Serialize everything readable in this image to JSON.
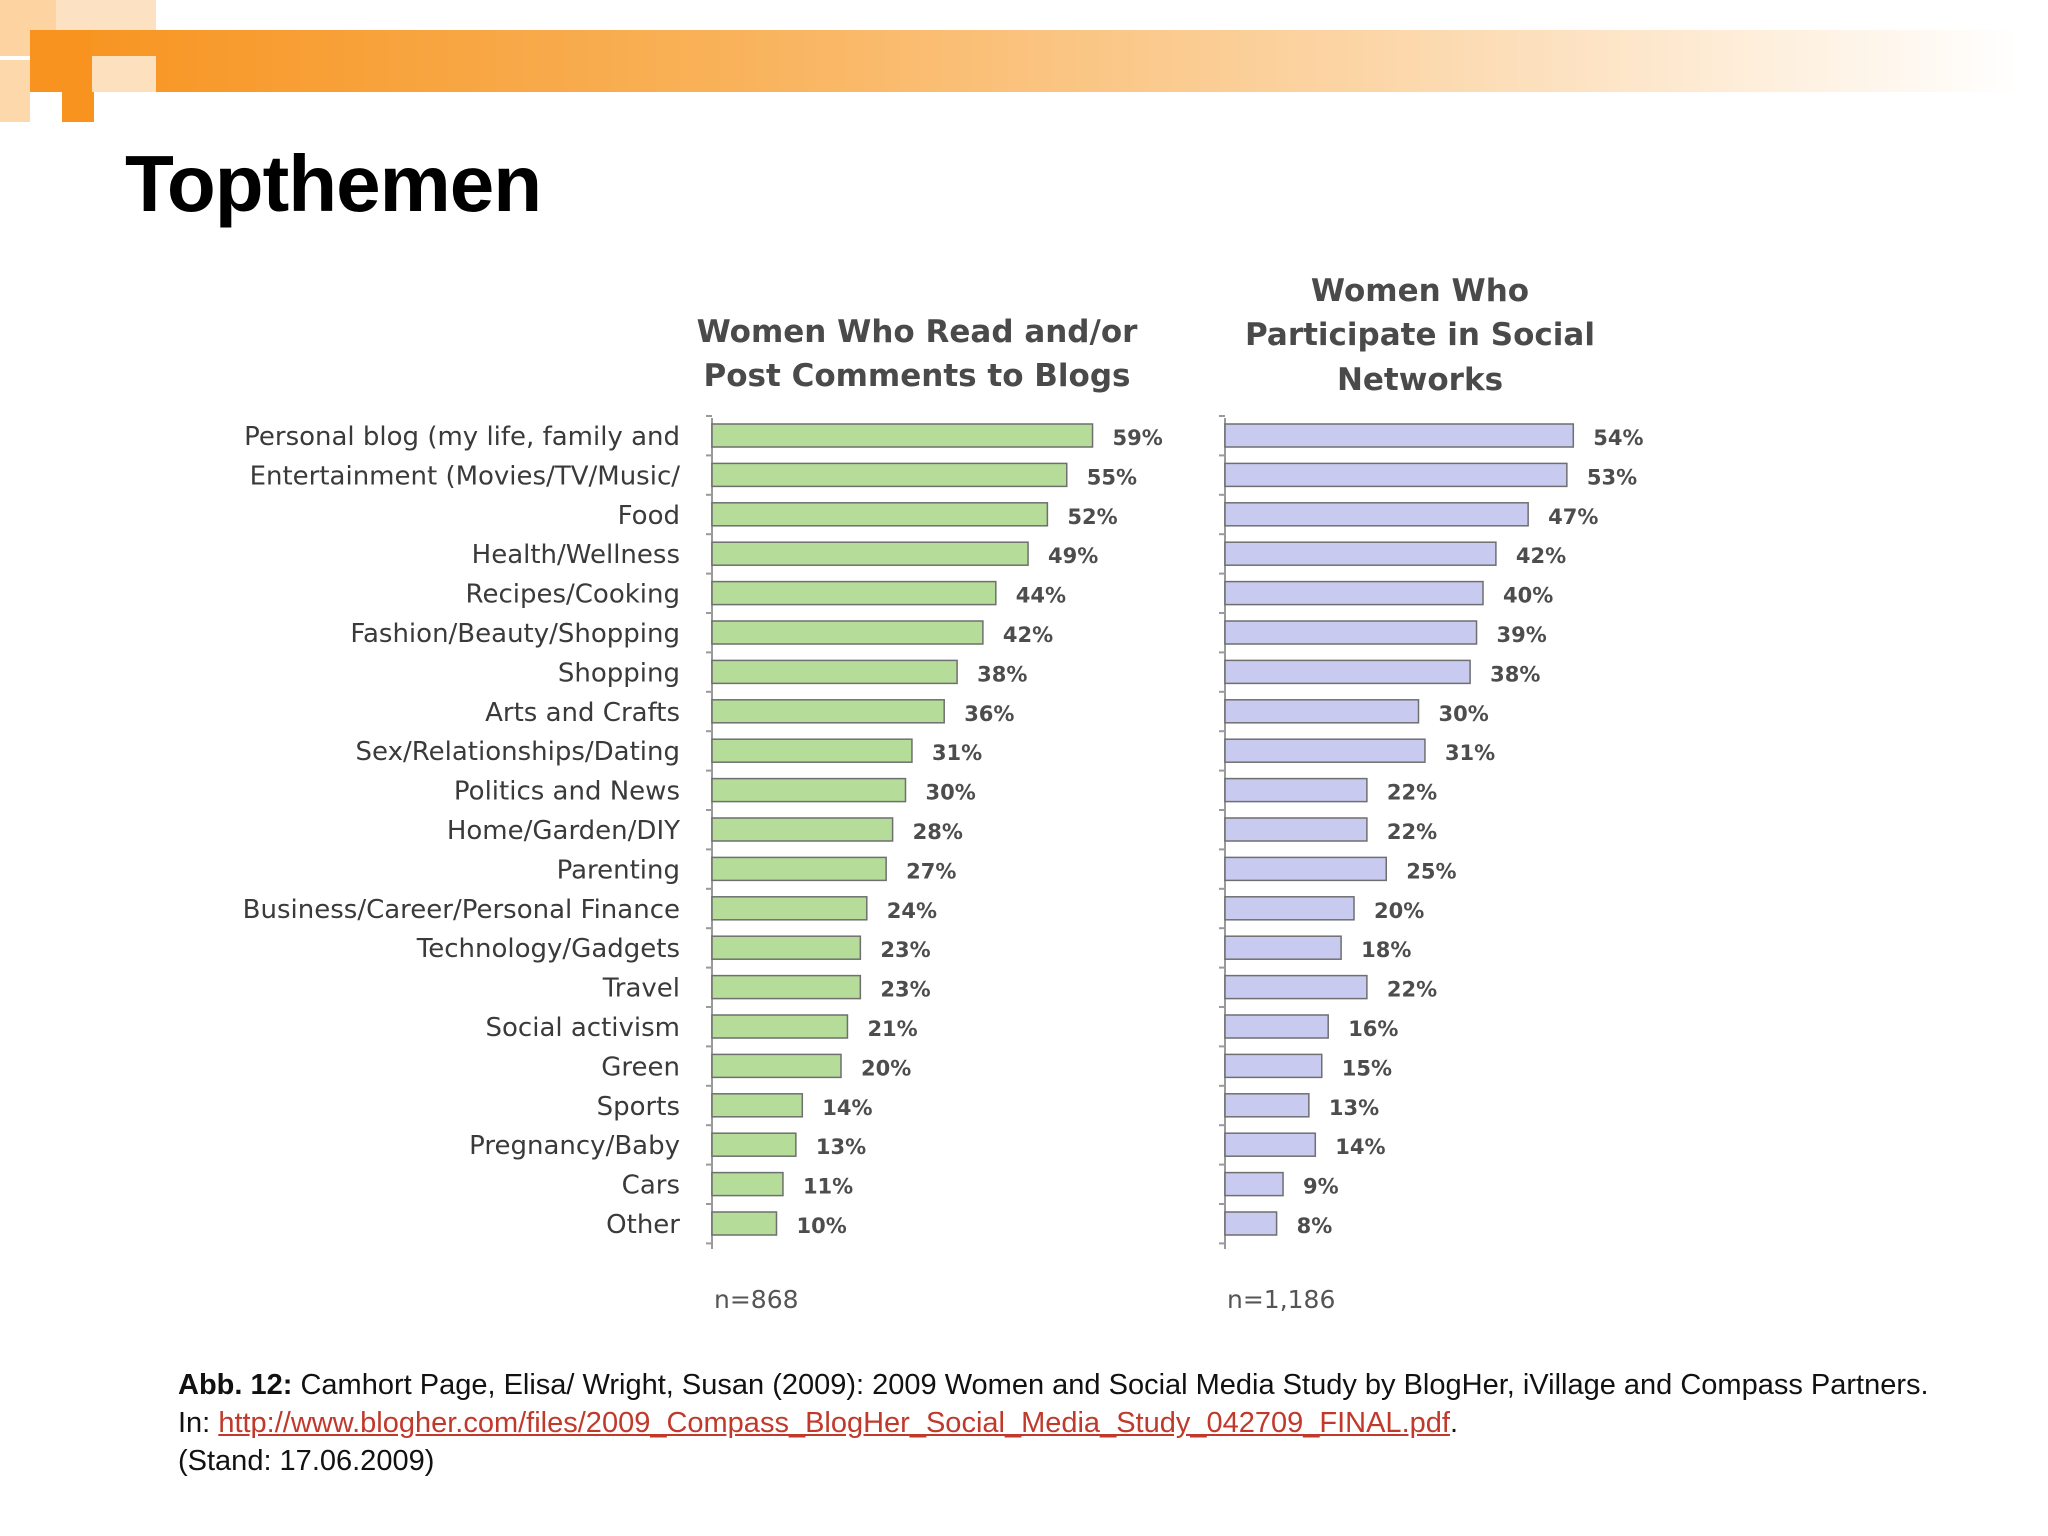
{
  "page": {
    "title": "Topthemen"
  },
  "chart_data": [
    {
      "type": "bar",
      "orientation": "horizontal",
      "title": "Women Who Read and/or Post Comments to Blogs",
      "categories": [
        "Personal blog (my life, family and",
        "Entertainment (Movies/TV/Music/",
        "Food",
        "Health/Wellness",
        "Recipes/Cooking",
        "Fashion/Beauty/Shopping",
        "Shopping",
        "Arts and Crafts",
        "Sex/Relationships/Dating",
        "Politics and News",
        "Home/Garden/DIY",
        "Parenting",
        "Business/Career/Personal Finance",
        "Technology/Gadgets",
        "Travel",
        "Social activism",
        "Green",
        "Sports",
        "Pregnancy/Baby",
        "Cars",
        "Other"
      ],
      "values": [
        59,
        55,
        52,
        49,
        44,
        42,
        38,
        36,
        31,
        30,
        28,
        27,
        24,
        23,
        23,
        21,
        20,
        14,
        13,
        11,
        10
      ],
      "value_labels": [
        "59%",
        "55%",
        "52%",
        "49%",
        "44%",
        "42%",
        "38%",
        "36%",
        "31%",
        "30%",
        "28%",
        "27%",
        "24%",
        "23%",
        "23%",
        "21%",
        "20%",
        "14%",
        "13%",
        "11%",
        "10%"
      ],
      "sample": "n=868",
      "xlim": [
        0,
        60
      ],
      "bar_color": "#b5dc98",
      "grid": false
    },
    {
      "type": "bar",
      "orientation": "horizontal",
      "title": "Women Who Participate in Social Networks",
      "categories": [
        "Personal blog (my life, family and",
        "Entertainment (Movies/TV/Music/",
        "Food",
        "Health/Wellness",
        "Recipes/Cooking",
        "Fashion/Beauty/Shopping",
        "Shopping",
        "Arts and Crafts",
        "Sex/Relationships/Dating",
        "Politics and News",
        "Home/Garden/DIY",
        "Parenting",
        "Business/Career/Personal Finance",
        "Technology/Gadgets",
        "Travel",
        "Social activism",
        "Green",
        "Sports",
        "Pregnancy/Baby",
        "Cars",
        "Other"
      ],
      "values": [
        54,
        53,
        47,
        42,
        40,
        39,
        38,
        30,
        31,
        22,
        22,
        25,
        20,
        18,
        22,
        16,
        15,
        13,
        14,
        9,
        8
      ],
      "value_labels": [
        "54%",
        "53%",
        "47%",
        "42%",
        "40%",
        "39%",
        "38%",
        "30%",
        "31%",
        "22%",
        "22%",
        "25%",
        "20%",
        "18%",
        "22%",
        "16%",
        "15%",
        "13%",
        "14%",
        "9%",
        "8%"
      ],
      "sample": "n=1,186",
      "xlim": [
        0,
        60
      ],
      "bar_color": "#c9caf0",
      "grid": false
    }
  ],
  "caption": {
    "label": "Abb. 12:",
    "text1": " Camhort Page, Elisa/ Wright, Susan (2009): 2009 Women and Social  Media Study by BlogHer, iVillage and Compass Partners. In:  ",
    "link": "http://www.blogher.com/files/2009_Compass_BlogHer_Social_Media_Study_042709_FINAL.pdf",
    "text2": ".",
    "date": "(Stand: 17.06.2009)"
  }
}
